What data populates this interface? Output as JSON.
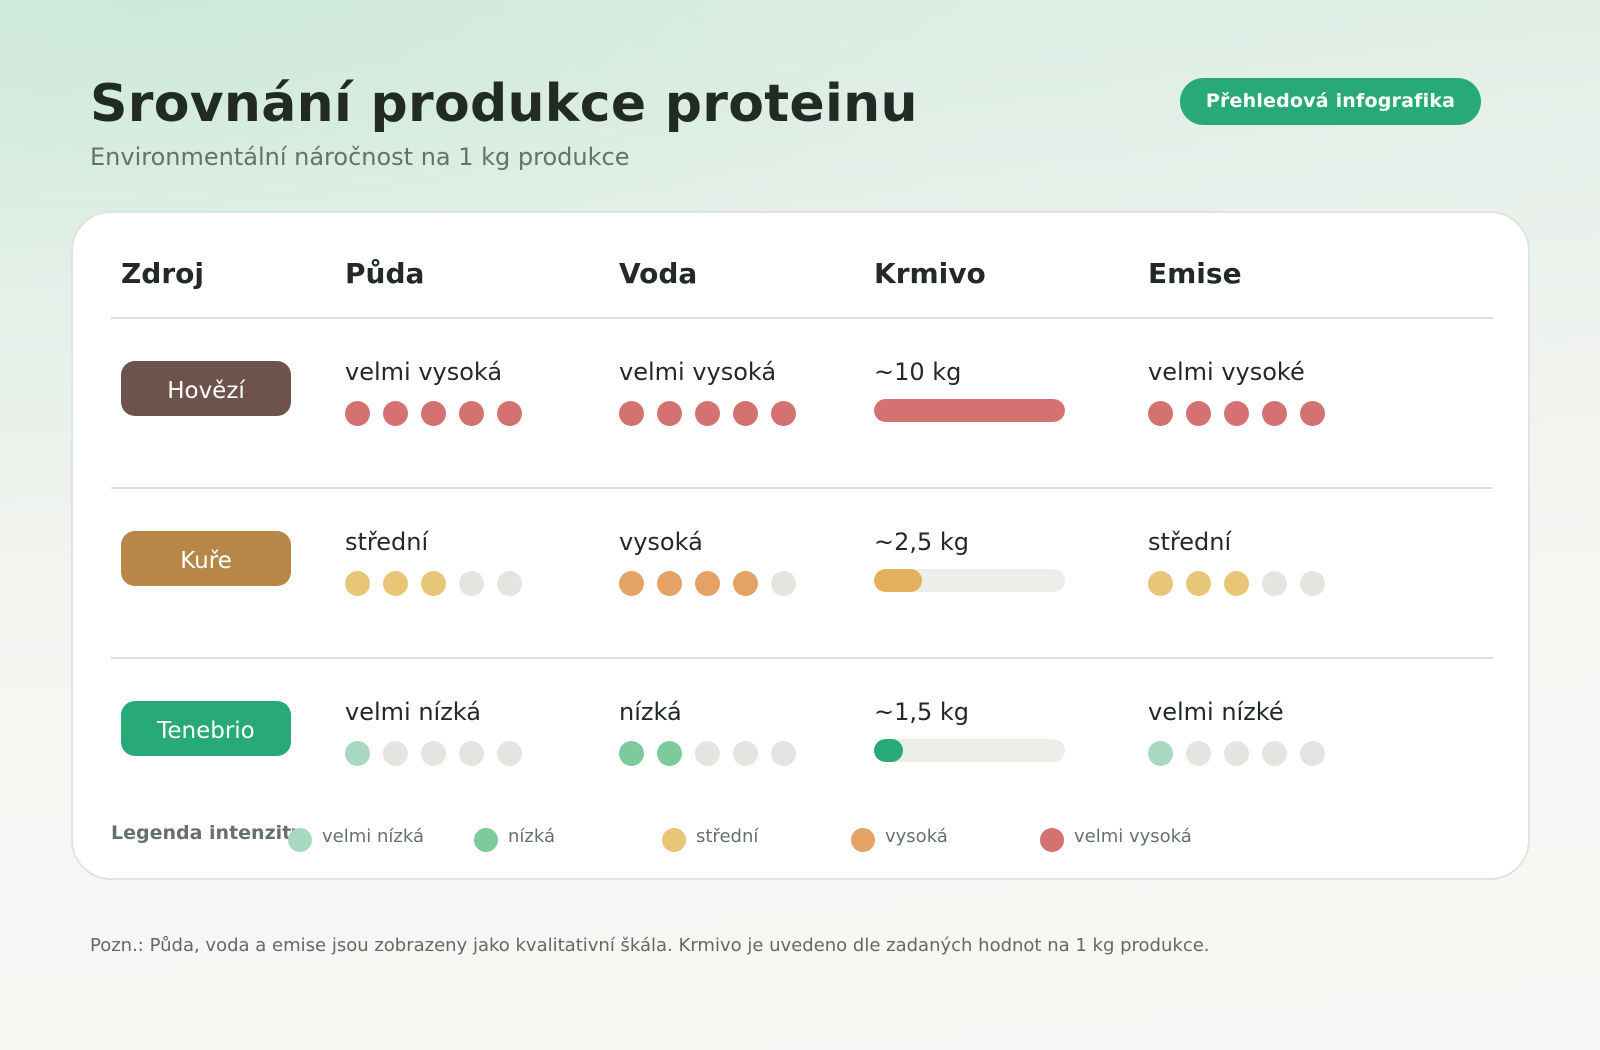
{
  "header": {
    "title": "Srovnání produkce proteinu",
    "subtitle": "Environmentální náročnost na 1 kg produkce",
    "badge": "Přehledová infografika"
  },
  "colors": {
    "accent": "#28aa78",
    "very_low": "#a9d8c0",
    "low": "#7dcb9c",
    "medium": "#e8c677",
    "high": "#e5a266",
    "very_high": "#d37271",
    "empty": "#e3e5e1",
    "track": "#eceee9"
  },
  "table": {
    "columns": [
      "Zdroj",
      "Půda",
      "Voda",
      "Krmivo",
      "Emise"
    ],
    "rows": [
      {
        "source": "Hovězí",
        "source_color": "#6e534d",
        "land": {
          "label": "velmi vysoká",
          "level": 5,
          "color": "#d37271"
        },
        "water": {
          "label": "velmi vysoká",
          "level": 5,
          "color": "#d37271"
        },
        "feed": {
          "label": "~10 kg",
          "value_kg": 10,
          "fill_pct": 100,
          "color": "#d37271"
        },
        "emissions": {
          "label": "velmi vysoké",
          "level": 5,
          "color": "#d37271"
        }
      },
      {
        "source": "Kuře",
        "source_color": "#b68747",
        "land": {
          "label": "střední",
          "level": 3,
          "color": "#e8c677"
        },
        "water": {
          "label": "vysoká",
          "level": 4,
          "color": "#e5a266"
        },
        "feed": {
          "label": "~2,5 kg",
          "value_kg": 2.5,
          "fill_pct": 25,
          "color": "#e3b15d"
        },
        "emissions": {
          "label": "střední",
          "level": 3,
          "color": "#e8c677"
        }
      },
      {
        "source": "Tenebrio",
        "source_color": "#28aa78",
        "land": {
          "label": "velmi nízká",
          "level": 1,
          "color": "#a9d8c0"
        },
        "water": {
          "label": "nízká",
          "level": 2,
          "color": "#7dcb9c"
        },
        "feed": {
          "label": "~1,5 kg",
          "value_kg": 1.5,
          "fill_pct": 15,
          "color": "#28aa78"
        },
        "emissions": {
          "label": "velmi nízké",
          "level": 1,
          "color": "#a9d8c0"
        }
      }
    ]
  },
  "legend": {
    "title": "Legenda intenzity",
    "items": [
      {
        "label": "velmi nízká",
        "color": "#a9d8c0"
      },
      {
        "label": "nízká",
        "color": "#7dcb9c"
      },
      {
        "label": "střední",
        "color": "#e8c677"
      },
      {
        "label": "vysoká",
        "color": "#e5a266"
      },
      {
        "label": "velmi vysoká",
        "color": "#d37271"
      }
    ]
  },
  "footnote": "Pozn.: Půda, voda a emise jsou zobrazeny jako kvalitativní škála. Krmivo je uvedeno dle zadaných hodnot na 1 kg produkce."
}
